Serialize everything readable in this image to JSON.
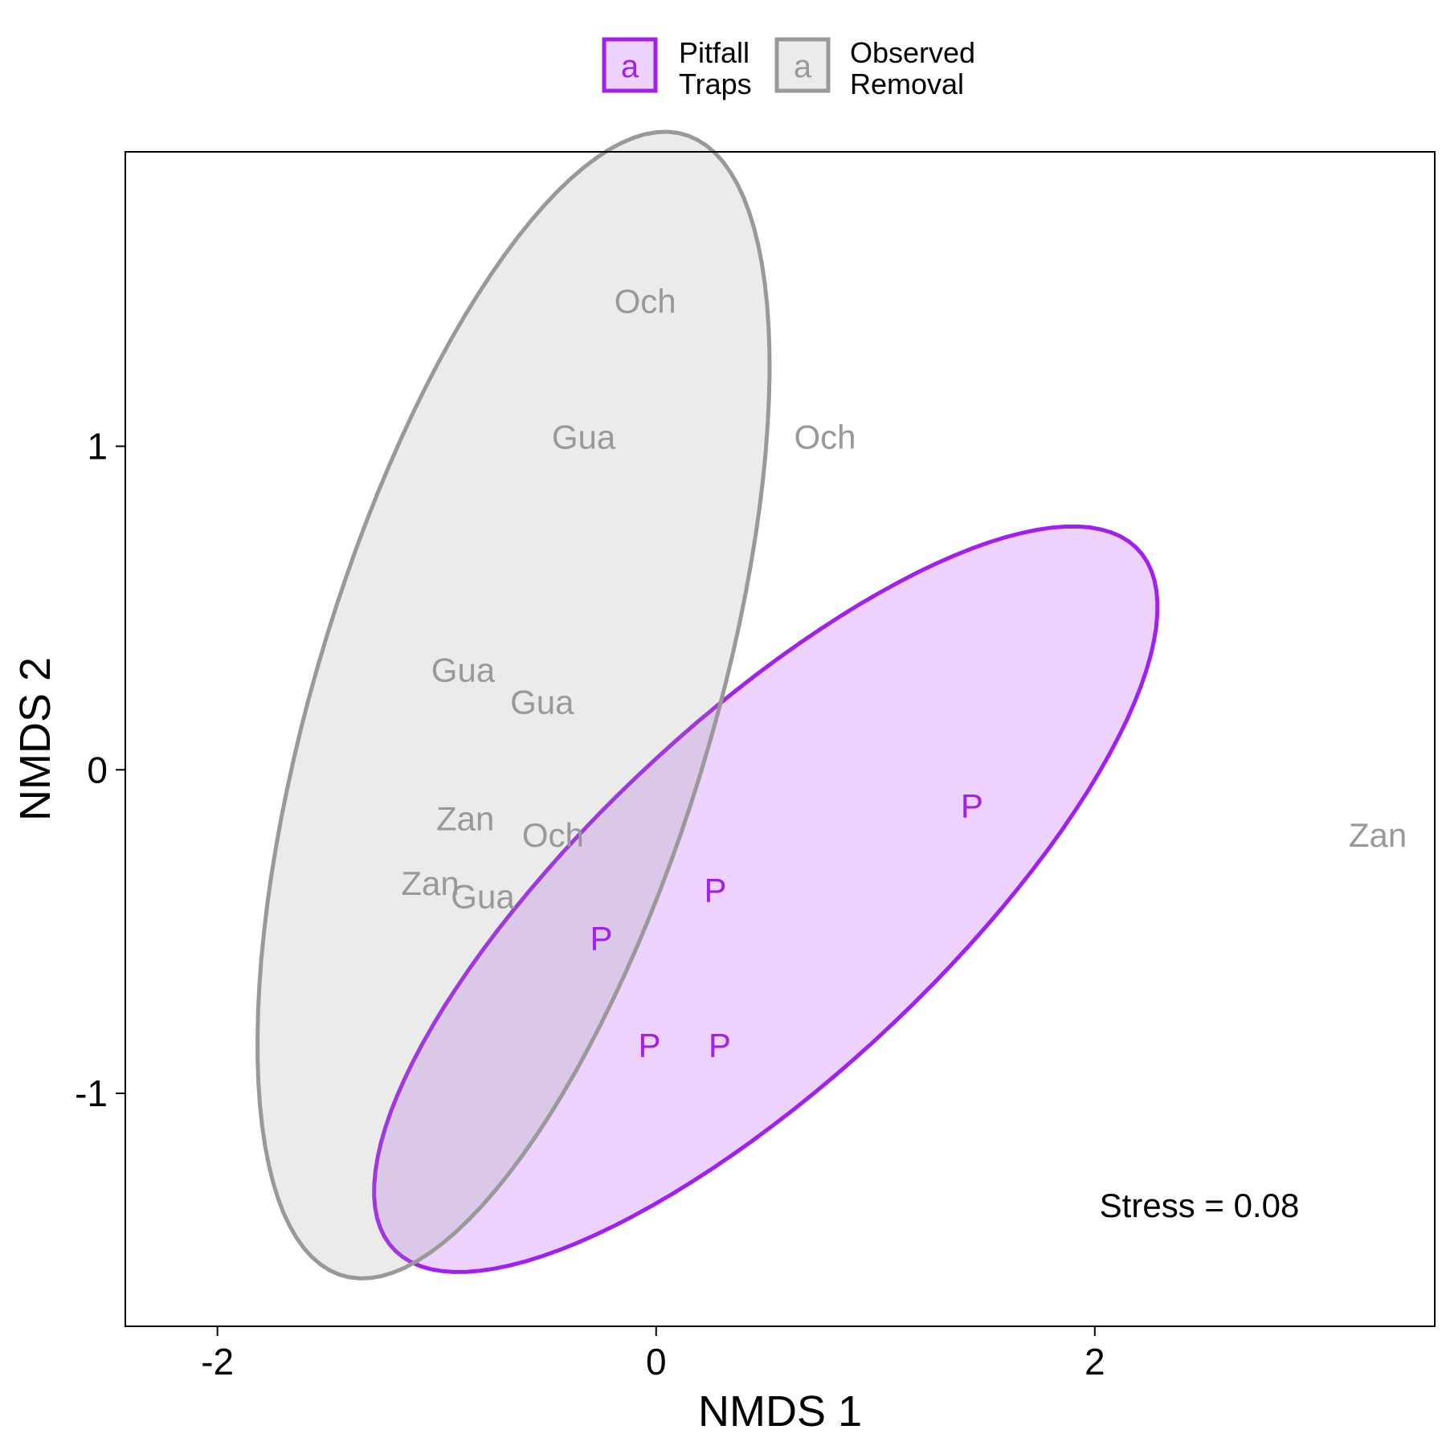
{
  "chart_data": {
    "type": "scatter",
    "title": "",
    "xlabel": "NMDS 1",
    "ylabel": "NMDS 2",
    "xlim": [
      -2.42,
      3.55
    ],
    "ylim": [
      -1.72,
      1.91
    ],
    "x_ticks": [
      -2,
      0,
      2
    ],
    "x_tick_labels": [
      "-2",
      "0",
      "2"
    ],
    "y_ticks": [
      -1,
      0,
      1
    ],
    "y_tick_labels": [
      "-1",
      "0",
      "1"
    ],
    "grid": false,
    "legend_position": "top",
    "legend": [
      {
        "key_label": "a",
        "label_lines": [
          "Pitfall",
          "Traps"
        ],
        "color": "#A020F0"
      },
      {
        "key_label": "a",
        "label_lines": [
          "Observed",
          "Removal"
        ],
        "color": "#999999"
      }
    ],
    "annotation": "Stress = 0.08",
    "series": [
      {
        "name": "Pitfall Traps",
        "color": "#A020F0",
        "fill": "#A020F0",
        "fill_opacity": 0.2,
        "points": [
          {
            "label": "P",
            "x": 1.44,
            "y": -0.11
          },
          {
            "label": "P",
            "x": 0.27,
            "y": -0.37
          },
          {
            "label": "P",
            "x": -0.25,
            "y": -0.52
          },
          {
            "label": "P",
            "x": -0.03,
            "y": -0.85
          },
          {
            "label": "P",
            "x": 0.29,
            "y": -0.85
          }
        ],
        "ellipse": {
          "cx": 0.5,
          "cy": -0.4,
          "a": 2.03,
          "b": 0.63,
          "angle_deg": 30
        }
      },
      {
        "name": "Observed Removal",
        "color": "#999999",
        "fill": "#999999",
        "fill_opacity": 0.2,
        "points": [
          {
            "label": "Och",
            "x": -0.05,
            "y": 1.45
          },
          {
            "label": "Gua",
            "x": -0.33,
            "y": 1.03
          },
          {
            "label": "Och",
            "x": 0.77,
            "y": 1.03
          },
          {
            "label": "Gua",
            "x": -0.88,
            "y": 0.31
          },
          {
            "label": "Gua",
            "x": -0.52,
            "y": 0.21
          },
          {
            "label": "Zan",
            "x": -0.87,
            "y": -0.15
          },
          {
            "label": "Och",
            "x": -0.47,
            "y": -0.2
          },
          {
            "label": "Zan",
            "x": -1.03,
            "y": -0.35
          },
          {
            "label": "Gua",
            "x": -0.79,
            "y": -0.39
          },
          {
            "label": "Zan",
            "x": 3.29,
            "y": -0.2
          }
        ],
        "ellipse": {
          "cx": -0.65,
          "cy": 0.2,
          "a": 1.94,
          "b": 0.86,
          "angle_deg": 63
        }
      }
    ]
  }
}
